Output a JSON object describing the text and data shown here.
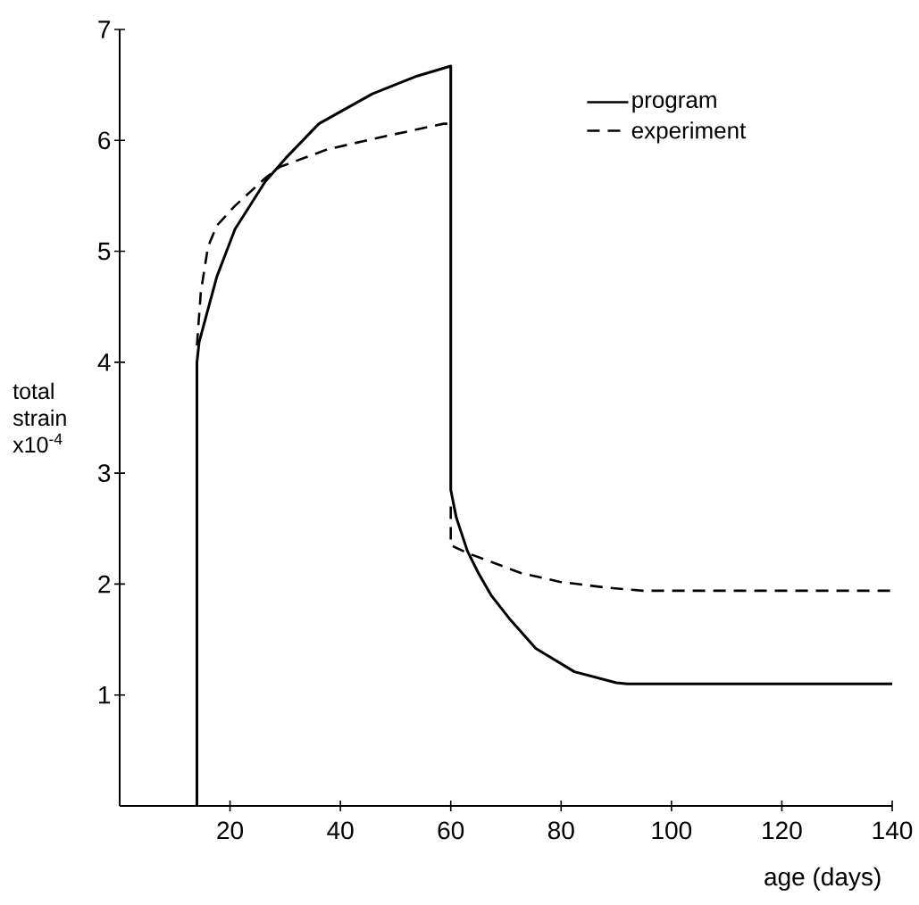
{
  "chart_data": {
    "type": "line",
    "xlabel": "age (days)",
    "ylabel": "total strain x10$^{-4}$",
    "xlim": [
      0,
      140
    ],
    "ylim": [
      0,
      7
    ],
    "xticks": [
      20,
      40,
      60,
      80,
      100,
      120,
      140
    ],
    "yticks": [
      1,
      2,
      3,
      4,
      5,
      6,
      7
    ],
    "legend": "top right",
    "grid": false,
    "series": [
      {
        "name": "program",
        "color": "#000000",
        "line_style": "solid",
        "x": [
          14,
          14,
          14.4,
          17.6,
          20.9,
          26.4,
          30.1,
          36.1,
          45.8,
          53.9,
          60,
          60,
          61,
          63,
          65,
          67.3,
          70.6,
          75.4,
          82.4,
          90,
          92,
          140
        ],
        "values": [
          0,
          4.0,
          4.18,
          4.77,
          5.2,
          5.63,
          5.84,
          6.15,
          6.42,
          6.58,
          6.67,
          2.85,
          2.6,
          2.3,
          2.1,
          1.9,
          1.69,
          1.42,
          1.21,
          1.11,
          1.1,
          1.1
        ]
      },
      {
        "name": "experiment",
        "color": "#000000",
        "line_style": "dashed",
        "x": [
          14,
          14.7,
          16,
          17.6,
          20.9,
          26.4,
          29,
          37.7,
          48.4,
          58.7,
          59.5
        ],
        "values": [
          4.15,
          4.63,
          5.04,
          5.23,
          5.41,
          5.66,
          5.76,
          5.92,
          6.04,
          6.15,
          6.15
        ]
      },
      {
        "color": "#000000",
        "line_style": "dashed",
        "x": [
          60,
          60,
          63,
          67.3,
          72.7,
          79.8,
          87.9,
          94.8,
          140
        ],
        "values": [
          2.7,
          2.35,
          2.28,
          2.2,
          2.1,
          2.02,
          1.97,
          1.94,
          1.94
        ]
      }
    ]
  }
}
